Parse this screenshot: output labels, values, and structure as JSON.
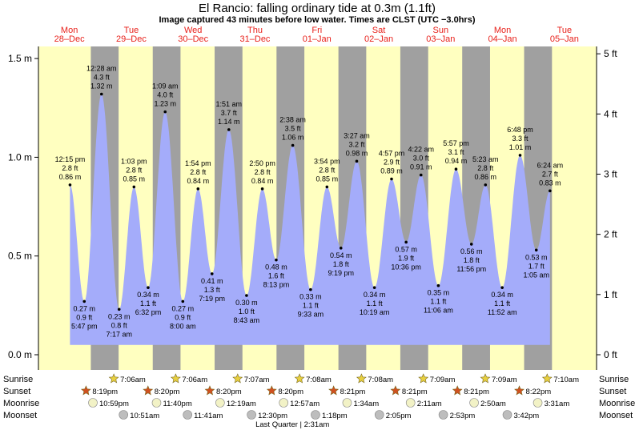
{
  "title": "El Rancio: falling  ordinary tide at 0.3m (1.1ft)",
  "subtitle": "Image captured 43 minutes before low water. Times are CLST (UTC −3.0hrs)",
  "colors": {
    "day": "#ffffc0",
    "night": "#a0a0a0",
    "tide": "#a4acfa",
    "text": "#000000",
    "day_label": "#e8201a",
    "sun_star": "#e8d040",
    "sunset_star": "#d05020",
    "moon": "#f2f2c6",
    "moonset": "#bdbdbd"
  },
  "days": [
    {
      "dow": "Mon",
      "date": "28–Dec"
    },
    {
      "dow": "Tue",
      "date": "29–Dec"
    },
    {
      "dow": "Wed",
      "date": "30–Dec"
    },
    {
      "dow": "Thu",
      "date": "31–Dec"
    },
    {
      "dow": "Fri",
      "date": "01–Jan"
    },
    {
      "dow": "Sat",
      "date": "02–Jan"
    },
    {
      "dow": "Sun",
      "date": "03–Jan"
    },
    {
      "dow": "Mon",
      "date": "04–Jan"
    },
    {
      "dow": "Tue",
      "date": "05–Jan"
    }
  ],
  "chart_data": {
    "type": "area",
    "title": "El Rancio: falling  ordinary tide at 0.3m (1.1ft)",
    "subtitle": "Image captured 43 minutes before low water. Times are CLST (UTC −3.0hrs)",
    "y_left_unit": "m",
    "y_right_unit": "ft",
    "y_left_ticks": [
      "0.0 m",
      "0.5 m",
      "1.0 m",
      "1.5 m"
    ],
    "y_right_ticks": [
      "0 ft",
      "1 ft",
      "2 ft",
      "3 ft",
      "4 ft",
      "5 ft"
    ],
    "ylim_m": [
      -0.03,
      1.61
    ],
    "start": "2020-12-28 00:00",
    "end": "2021-01-05 06:24",
    "tides": [
      {
        "time": "2020-12-28 12:15",
        "hm": 0.86,
        "t": "12:15 pm",
        "f": "2.8 ft",
        "m": "0.86 m"
      },
      {
        "time": "2020-12-28 17:47",
        "hm": 0.27,
        "t": "5:47 pm",
        "f": "0.9 ft",
        "m": "0.27 m"
      },
      {
        "time": "2020-12-29 00:28",
        "hm": 1.32,
        "t": "12:28 am",
        "f": "4.3 ft",
        "m": "1.32 m"
      },
      {
        "time": "2020-12-29 07:17",
        "hm": 0.23,
        "t": "7:17 am",
        "f": "0.8 ft",
        "m": "0.23 m"
      },
      {
        "time": "2020-12-29 13:03",
        "hm": 0.85,
        "t": "1:03 pm",
        "f": "2.8 ft",
        "m": "0.85 m"
      },
      {
        "time": "2020-12-29 18:32",
        "hm": 0.34,
        "t": "6:32 pm",
        "f": "1.1 ft",
        "m": "0.34 m"
      },
      {
        "time": "2020-12-30 01:09",
        "hm": 1.23,
        "t": "1:09 am",
        "f": "4.0 ft",
        "m": "1.23 m"
      },
      {
        "time": "2020-12-30 08:00",
        "hm": 0.27,
        "t": "8:00 am",
        "f": "0.9 ft",
        "m": "0.27 m"
      },
      {
        "time": "2020-12-30 13:54",
        "hm": 0.84,
        "t": "1:54 pm",
        "f": "2.8 ft",
        "m": "0.84 m"
      },
      {
        "time": "2020-12-30 19:19",
        "hm": 0.41,
        "t": "7:19 pm",
        "f": "1.3 ft",
        "m": "0.41 m"
      },
      {
        "time": "2020-12-31 01:51",
        "hm": 1.14,
        "t": "1:51 am",
        "f": "3.7 ft",
        "m": "1.14 m"
      },
      {
        "time": "2020-12-31 08:43",
        "hm": 0.3,
        "t": "8:43 am",
        "f": "1.0 ft",
        "m": "0.30 m"
      },
      {
        "time": "2020-12-31 14:50",
        "hm": 0.84,
        "t": "2:50 pm",
        "f": "2.8 ft",
        "m": "0.84 m"
      },
      {
        "time": "2020-12-31 20:13",
        "hm": 0.48,
        "t": "8:13 pm",
        "f": "1.6 ft",
        "m": "0.48 m"
      },
      {
        "time": "2021-01-01 02:38",
        "hm": 1.06,
        "t": "2:38 am",
        "f": "3.5 ft",
        "m": "1.06 m"
      },
      {
        "time": "2021-01-01 09:33",
        "hm": 0.33,
        "t": "9:33 am",
        "f": "1.1 ft",
        "m": "0.33 m"
      },
      {
        "time": "2021-01-01 15:54",
        "hm": 0.85,
        "t": "3:54 pm",
        "f": "2.8 ft",
        "m": "0.85 m"
      },
      {
        "time": "2021-01-01 21:19",
        "hm": 0.54,
        "t": "9:19 pm",
        "f": "1.8 ft",
        "m": "0.54 m"
      },
      {
        "time": "2021-01-02 03:27",
        "hm": 0.98,
        "t": "3:27 am",
        "f": "3.2 ft",
        "m": "0.98 m"
      },
      {
        "time": "2021-01-02 10:19",
        "hm": 0.34,
        "t": "10:19 am",
        "f": "1.1 ft",
        "m": "0.34 m"
      },
      {
        "time": "2021-01-02 16:57",
        "hm": 0.89,
        "t": "4:57 pm",
        "f": "2.9 ft",
        "m": "0.89 m"
      },
      {
        "time": "2021-01-02 22:36",
        "hm": 0.57,
        "t": "10:36 pm",
        "f": "1.9 ft",
        "m": "0.57 m"
      },
      {
        "time": "2021-01-03 04:22",
        "hm": 0.91,
        "t": "4:22 am",
        "f": "3.0 ft",
        "m": "0.91 m"
      },
      {
        "time": "2021-01-03 11:06",
        "hm": 0.35,
        "t": "11:06 am",
        "f": "1.1 ft",
        "m": "0.35 m"
      },
      {
        "time": "2021-01-03 17:57",
        "hm": 0.94,
        "t": "5:57 pm",
        "f": "3.1 ft",
        "m": "0.94 m"
      },
      {
        "time": "2021-01-03 23:56",
        "hm": 0.56,
        "t": "11:56 pm",
        "f": "1.8 ft",
        "m": "0.56 m"
      },
      {
        "time": "2021-01-04 05:23",
        "hm": 0.86,
        "t": "5:23 am",
        "f": "2.8 ft",
        "m": "0.86 m"
      },
      {
        "time": "2021-01-04 11:52",
        "hm": 0.34,
        "t": "11:52 am",
        "f": "1.1 ft",
        "m": "0.34 m"
      },
      {
        "time": "2021-01-04 18:48",
        "hm": 1.01,
        "t": "6:48 pm",
        "f": "3.3 ft",
        "m": "1.01 m"
      },
      {
        "time": "2021-01-05 01:05",
        "hm": 0.53,
        "t": "1:05 am",
        "f": "1.7 ft",
        "m": "0.53 m"
      },
      {
        "time": "2021-01-05 06:24",
        "hm": 0.83,
        "t": "6:24 am",
        "f": "2.7 ft",
        "m": "0.83 m"
      }
    ],
    "sunrise": [
      {
        "time": "2020-12-29 07:06",
        "label": "7:06am"
      },
      {
        "time": "2020-12-30 07:06",
        "label": "7:06am"
      },
      {
        "time": "2020-12-31 07:07",
        "label": "7:07am"
      },
      {
        "time": "2021-01-01 07:08",
        "label": "7:08am"
      },
      {
        "time": "2021-01-02 07:08",
        "label": "7:08am"
      },
      {
        "time": "2021-01-03 07:09",
        "label": "7:09am"
      },
      {
        "time": "2021-01-04 07:09",
        "label": "7:09am"
      },
      {
        "time": "2021-01-05 07:10",
        "label": "7:10am"
      }
    ],
    "sunset": [
      {
        "time": "2020-12-28 20:19",
        "label": "8:19pm"
      },
      {
        "time": "2020-12-29 20:20",
        "label": "8:20pm"
      },
      {
        "time": "2020-12-30 20:20",
        "label": "8:20pm"
      },
      {
        "time": "2020-12-31 20:20",
        "label": "8:20pm"
      },
      {
        "time": "2021-01-01 20:21",
        "label": "8:21pm"
      },
      {
        "time": "2021-01-02 20:21",
        "label": "8:21pm"
      },
      {
        "time": "2021-01-03 20:21",
        "label": "8:21pm"
      },
      {
        "time": "2021-01-04 20:22",
        "label": "8:22pm"
      }
    ],
    "moonrise": [
      {
        "time": "2020-12-28 22:59",
        "label": "10:59pm"
      },
      {
        "time": "2020-12-29 23:40",
        "label": "11:40pm"
      },
      {
        "time": "2020-12-31 00:19",
        "label": "12:19am"
      },
      {
        "time": "2021-01-01 00:57",
        "label": "12:57am"
      },
      {
        "time": "2021-01-02 01:34",
        "label": "1:34am"
      },
      {
        "time": "2021-01-03 02:11",
        "label": "2:11am"
      },
      {
        "time": "2021-01-04 02:50",
        "label": "2:50am"
      },
      {
        "time": "2021-01-05 03:31",
        "label": "3:31am"
      }
    ],
    "moonset": [
      {
        "time": "2020-12-29 10:51",
        "label": "10:51am"
      },
      {
        "time": "2020-12-30 11:41",
        "label": "11:41am"
      },
      {
        "time": "2020-12-31 12:30",
        "label": "12:30pm"
      },
      {
        "time": "2021-01-01 13:18",
        "label": "1:18pm"
      },
      {
        "time": "2021-01-02 14:05",
        "label": "2:05pm"
      },
      {
        "time": "2021-01-03 14:53",
        "label": "2:53pm"
      },
      {
        "time": "2021-01-04 15:42",
        "label": "3:42pm"
      }
    ],
    "moon_phase": {
      "time": "2021-01-01 02:31",
      "label": "Last Quarter | 2:31am"
    },
    "row_labels": {
      "sunrise": "Sunrise",
      "sunset": "Sunset",
      "moonrise": "Moonrise",
      "moonset": "Moonset"
    }
  }
}
